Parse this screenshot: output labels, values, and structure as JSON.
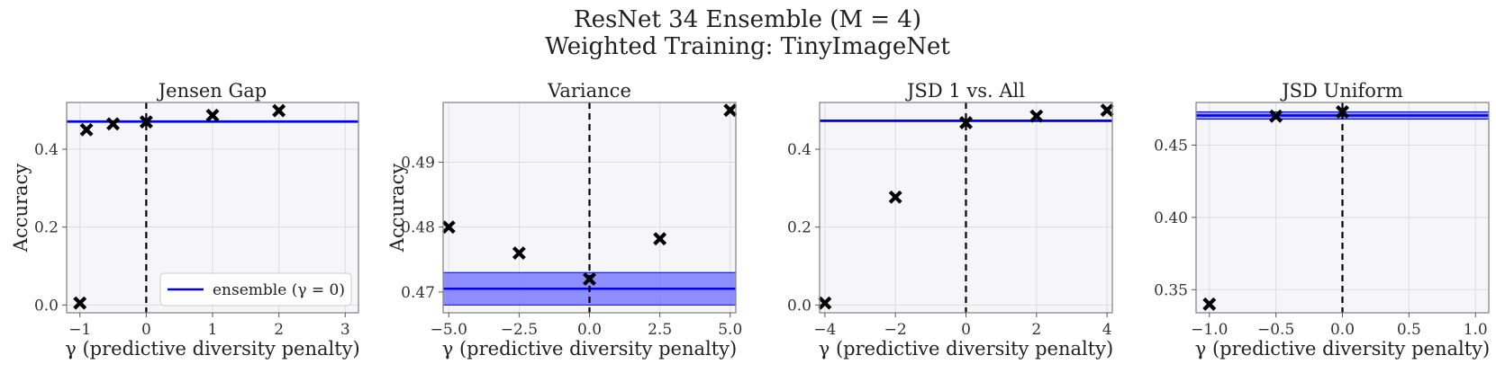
{
  "figure": {
    "title_line1": "ResNet 34 Ensemble (M = 4)",
    "title_line2": "Weighted Training: TinyImageNet"
  },
  "colors": {
    "ensemble_line": "#0000ee",
    "band_fill": "#7b7bff",
    "marker": "#000000",
    "axes_bg": "#f6f6f8",
    "grid": "#dddddd"
  },
  "legend": {
    "label": "ensemble (γ = 0)"
  },
  "chart_data": [
    {
      "type": "scatter",
      "title": "Jensen Gap",
      "xlabel": "γ (predictive diversity penalty)",
      "ylabel": "Accuracy",
      "xlim": [
        -1.2,
        3.2
      ],
      "ylim": [
        -0.02,
        0.52
      ],
      "xticks": [
        -1,
        0,
        1,
        2,
        3
      ],
      "xtick_labels": [
        "−1",
        "0",
        "1",
        "2",
        "3"
      ],
      "yticks": [
        0.0,
        0.2,
        0.4
      ],
      "ytick_labels": [
        "0.0",
        "0.2",
        "0.4"
      ],
      "x": [
        -1,
        -0.9,
        -0.5,
        0,
        1,
        2
      ],
      "y": [
        0.005,
        0.45,
        0.465,
        0.47,
        0.487,
        0.499
      ],
      "ensemble_value": 0.471,
      "band": [
        0.469,
        0.473
      ],
      "legend": true
    },
    {
      "type": "scatter",
      "title": "Variance",
      "xlabel": "γ (predictive diversity penalty)",
      "ylabel": "Accuracy",
      "xlim": [
        -5.2,
        5.2
      ],
      "ylim": [
        0.4668,
        0.4992
      ],
      "xticks": [
        -5,
        -2.5,
        0,
        2.5,
        5
      ],
      "xtick_labels": [
        "−5.0",
        "−2.5",
        "0.0",
        "2.5",
        "5.0"
      ],
      "yticks": [
        0.47,
        0.48,
        0.49
      ],
      "ytick_labels": [
        "0.47",
        "0.48",
        "0.49"
      ],
      "x": [
        -5,
        -2.5,
        0,
        2.5,
        5
      ],
      "y": [
        0.48,
        0.476,
        0.472,
        0.4782,
        0.498
      ],
      "ensemble_value": 0.4705,
      "band": [
        0.468,
        0.473
      ],
      "legend": false
    },
    {
      "type": "scatter",
      "title": "JSD 1 vs. All",
      "xlabel": "γ (predictive diversity penalty)",
      "ylabel": "",
      "xlim": [
        -4.15,
        4.15
      ],
      "ylim": [
        -0.02,
        0.52
      ],
      "xticks": [
        -4,
        -2,
        0,
        2,
        4
      ],
      "xtick_labels": [
        "−4",
        "−2",
        "0",
        "2",
        "4"
      ],
      "yticks": [
        0.0,
        0.2,
        0.4
      ],
      "ytick_labels": [
        "0.0",
        "0.2",
        "0.4"
      ],
      "x": [
        -4,
        -2,
        0,
        2,
        4
      ],
      "y": [
        0.005,
        0.277,
        0.468,
        0.485,
        0.5
      ],
      "ensemble_value": 0.473,
      "band": [
        0.471,
        0.475
      ],
      "legend": false
    },
    {
      "type": "scatter",
      "title": "JSD Uniform",
      "xlabel": "γ (predictive diversity penalty)",
      "ylabel": "",
      "xlim": [
        -1.1,
        1.1
      ],
      "ylim": [
        0.334,
        0.4795
      ],
      "xticks": [
        -1,
        -0.5,
        0,
        0.5,
        1
      ],
      "xtick_labels": [
        "−1.0",
        "−0.5",
        "0.0",
        "0.5",
        "1.0"
      ],
      "yticks": [
        0.35,
        0.4,
        0.45
      ],
      "ytick_labels": [
        "0.35",
        "0.40",
        "0.45"
      ],
      "x": [
        -1,
        -0.5,
        0
      ],
      "y": [
        0.34,
        0.47,
        0.473
      ],
      "ensemble_value": 0.4705,
      "band": [
        0.468,
        0.473
      ],
      "legend": false
    }
  ]
}
